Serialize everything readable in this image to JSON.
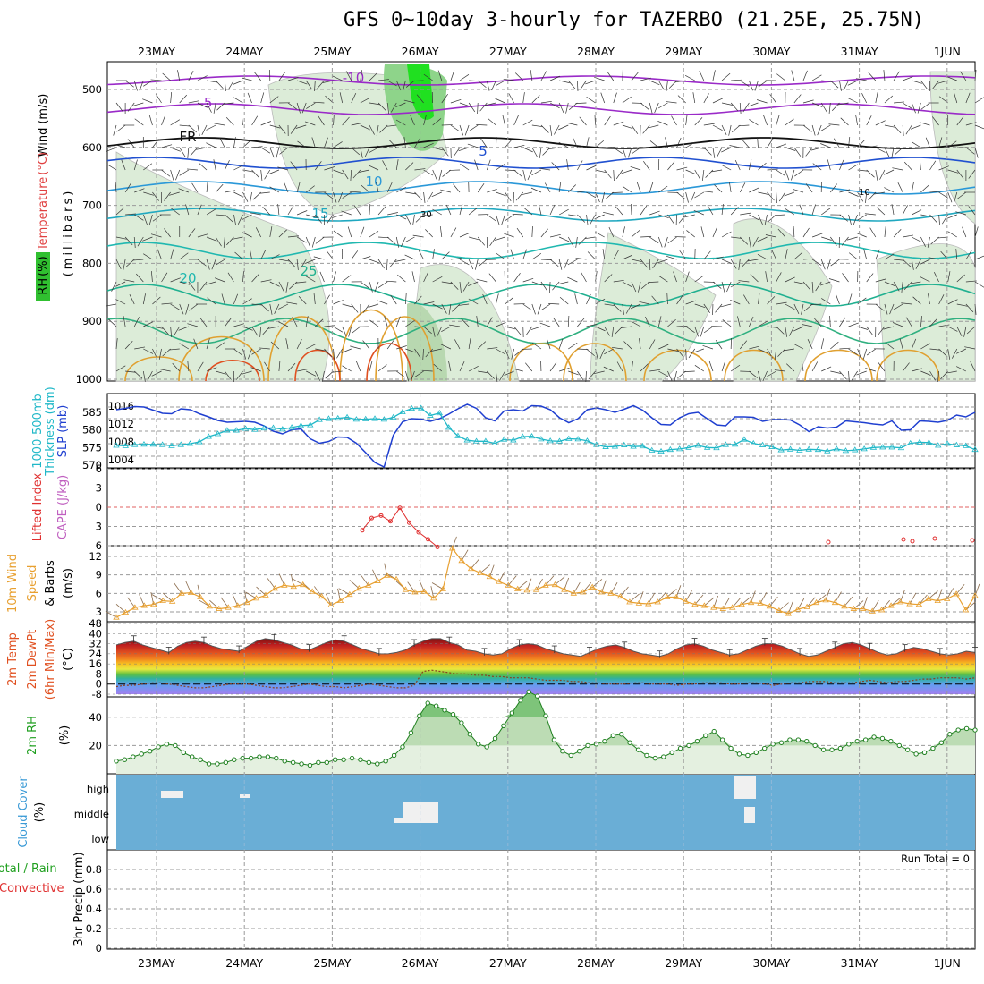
{
  "title": "GFS 0~10day 3-hourly for TAZERBO (21.25E, 25.75N)",
  "colors": {
    "slp": "#1f3fd0",
    "thickness": "#20b8c8",
    "lifted": "#e03030",
    "wind10": "#e8a030",
    "rh2m": "#208020",
    "cloud_bg": "#6aaed6",
    "cloud_patch": "#f0f0f0",
    "precip_total": "#20a020",
    "precip_conv": "#e03030",
    "temp_warm": "#e05020"
  },
  "panels": {
    "profile": {
      "ylabel_parts": [
        "Wind",
        "(m/s)",
        "Temperature",
        "(°C)",
        "RH",
        "(%)",
        "(millibars)"
      ]
    },
    "slp": {
      "ylabel1": "1000-500mb",
      "ylabel2": "Thickness (dm)",
      "ylabel3": "SLP (mb)"
    },
    "lifted": {
      "ylabel1": "Lifted Index",
      "ylabel2": "CAPE (J/kg)"
    },
    "wind10": {
      "ylabel1": "10m Wind",
      "ylabel2": "Speed",
      "ylabel3": "& Barbs",
      "ylabel4": "(m/s)"
    },
    "temp": {
      "ylabel1": "2m Temp",
      "ylabel2": "2m DewPt",
      "ylabel3": "(6hr Min/Max)",
      "ylabel4": "(°C)"
    },
    "rh": {
      "ylabel1": "2m RH",
      "ylabel2": "(%)"
    },
    "cloud": {
      "ylabel1": "Cloud Cover",
      "ylabel2": "(%)",
      "levels": [
        "high",
        "middle",
        "low"
      ]
    },
    "precip": {
      "ylabel1": "Total / Rain",
      "ylabel2": "Convective",
      "ylabel3": "3hr Precip (mm)",
      "run_total": "Run Total = 0"
    }
  },
  "chart_data": [
    {
      "type": "line",
      "panel": "axes",
      "x_dates": [
        "23MAY",
        "24MAY",
        "25MAY",
        "26MAY",
        "27MAY",
        "28MAY",
        "29MAY",
        "30MAY",
        "31MAY",
        "1JUN"
      ]
    },
    {
      "type": "line",
      "panel": "profile",
      "ylabel": "millibars",
      "yticks": [
        500,
        600,
        700,
        800,
        900,
        1000
      ],
      "ylim": [
        1000,
        450
      ],
      "isotherm_labels": [
        "-10",
        "-5",
        "FR",
        "5",
        "10",
        "15",
        "20",
        "25"
      ],
      "rh_contour_labels": [
        "10",
        "30"
      ]
    },
    {
      "type": "line",
      "panel": "slp",
      "yticks_left": [
        585,
        580,
        575,
        570
      ],
      "yticks_right": [
        1016,
        1012,
        1008,
        1004
      ],
      "series": [
        {
          "name": "SLP",
          "axis": "right",
          "values": [
            1015.2,
            1015.5,
            1015.9,
            1015.8,
            1015.1,
            1014.4,
            1014.3,
            1015.4,
            1015.2,
            1014.3,
            1013.6,
            1012.8,
            1012.4,
            1012.5,
            1012.6,
            1012.4,
            1011.6,
            1010.4,
            1009.8,
            1010.7,
            1010.9,
            1008.7,
            1007.7,
            1008.1,
            1009.1,
            1009.0,
            1007.7,
            1005.6,
            1003.4,
            1002.4,
            1009.5,
            1012.5,
            1013.2,
            1013.1,
            1012.6,
            1013.2,
            1014.2,
            1015.4,
            1016.4,
            1015.5,
            1013.4,
            1012.7,
            1014.9,
            1015.2,
            1014.9,
            1016.1,
            1016.0,
            1015.2,
            1013.4,
            1012.3,
            1013.2,
            1015.2,
            1015.6,
            1015.2,
            1014.6,
            1015.3,
            1016.1,
            1015.1,
            1013.4,
            1011.9,
            1011.8,
            1013.4,
            1014.3,
            1014.6,
            1013.2,
            1011.8,
            1011.6,
            1013.6,
            1013.6,
            1013.5,
            1012.6,
            1013.0,
            1013.0,
            1012.9,
            1011.8,
            1010.3,
            1011.4,
            1011.1,
            1011.3,
            1012.7,
            1012.5,
            1012.3,
            1012.0,
            1011.8,
            1012.7,
            1010.6,
            1010.7,
            1012.7,
            1012.6,
            1012.4,
            1012.8,
            1014.0,
            1013.6,
            1014.6
          ]
        },
        {
          "name": "1000-500mb Thickness",
          "axis": "left",
          "values": [
            575.6,
            575.5,
            575.8,
            575.9,
            575.9,
            575.8,
            575.5,
            575.8,
            576.1,
            576.6,
            578.1,
            578.9,
            579.9,
            579.9,
            580.4,
            580.1,
            580.5,
            580.6,
            580.2,
            580.7,
            581.2,
            581.4,
            582.9,
            583.2,
            583.3,
            583.6,
            583.0,
            583.1,
            583.2,
            583.0,
            583.6,
            585.1,
            586.1,
            586.2,
            584.1,
            584.8,
            580.7,
            578.3,
            577.1,
            576.8,
            576.8,
            576.2,
            577.3,
            577.1,
            578.1,
            578.2,
            577.4,
            576.9,
            576.8,
            577.5,
            577.4,
            576.9,
            575.8,
            575.2,
            575.3,
            575.7,
            575.3,
            575.4,
            574.2,
            573.9,
            574.4,
            574.6,
            575.0,
            575.6,
            575.0,
            574.9,
            575.8,
            575.9,
            577.3,
            576.2,
            575.7,
            575.2,
            574.3,
            574.5,
            574.2,
            574.5,
            574.4,
            574.0,
            574.6,
            574.1,
            574.3,
            574.6,
            575.0,
            575.1,
            575.1,
            574.9,
            576.2,
            576.5,
            576.4,
            575.6,
            576.1,
            575.7,
            575.5,
            574.4
          ]
        }
      ]
    },
    {
      "type": "line",
      "panel": "lifted",
      "yticks": [
        -6,
        -3,
        0,
        3,
        6
      ],
      "series": [
        {
          "name": "Lifted Index",
          "values": [
            3.6,
            1.7,
            1.3,
            2.2,
            0.1,
            2.4,
            3.9,
            5.0,
            6.2
          ]
        }
      ]
    },
    {
      "type": "line",
      "panel": "wind10",
      "yticks": [
        3,
        6,
        9,
        12
      ],
      "series": [
        {
          "name": "10m Wind Speed",
          "values": [
            2.1,
            2.9,
            3.7,
            4.0,
            4.2,
            4.8,
            4.7,
            6.0,
            6.1,
            5.4,
            3.9,
            3.5,
            3.7,
            4.0,
            4.5,
            5.2,
            5.7,
            6.8,
            7.3,
            7.1,
            7.4,
            6.3,
            5.5,
            4.1,
            4.8,
            5.8,
            6.8,
            7.3,
            8.0,
            8.9,
            8.3,
            6.6,
            6.2,
            6.3,
            5.2,
            6.7,
            13.3,
            11.3,
            10.0,
            9.3,
            8.7,
            7.9,
            7.3,
            6.7,
            6.5,
            6.6,
            7.3,
            7.4,
            6.6,
            6.0,
            6.2,
            7.0,
            6.2,
            6.0,
            5.5,
            4.6,
            4.4,
            4.3,
            4.6,
            5.4,
            5.4,
            4.7,
            4.2,
            4.0,
            3.7,
            3.5,
            3.7,
            4.2,
            4.5,
            4.4,
            3.9,
            3.2,
            2.7,
            3.4,
            3.8,
            4.5,
            4.9,
            4.5,
            3.9,
            3.5,
            3.5,
            3.1,
            3.3,
            4.0,
            4.6,
            4.3,
            4.2,
            5.1,
            4.8,
            5.1,
            5.9,
            3.3,
            5.6
          ]
        }
      ]
    },
    {
      "type": "area",
      "panel": "temp",
      "yticks": [
        -8,
        0,
        8,
        16,
        24,
        32,
        40,
        48
      ],
      "series": [
        {
          "name": "2m Temp",
          "values": [
            31,
            33,
            34,
            31,
            29,
            27,
            25,
            30,
            33,
            34,
            33,
            30,
            28,
            27,
            26,
            30,
            34,
            36,
            35,
            33,
            31,
            28,
            27,
            30,
            33,
            35,
            34,
            31,
            28,
            26,
            24,
            24,
            25,
            27,
            31,
            34,
            36,
            36,
            33,
            31,
            27,
            26,
            24,
            23,
            24,
            28,
            31,
            32,
            31,
            28,
            26,
            24,
            23,
            22,
            25,
            28,
            30,
            31,
            29,
            26,
            24,
            23,
            22,
            24,
            28,
            31,
            32,
            30,
            27,
            25,
            23,
            24,
            27,
            30,
            32,
            32,
            30,
            27,
            24,
            22,
            23,
            26,
            29,
            32,
            33,
            31,
            28,
            25,
            23,
            24,
            27,
            29,
            28,
            26,
            24,
            23,
            24,
            26,
            25
          ]
        },
        {
          "name": "2m DewPt",
          "values": [
            -2,
            -1,
            -1,
            0,
            1,
            1,
            0,
            -1,
            -2,
            -3,
            -3,
            -2,
            -1,
            0,
            0,
            0,
            -1,
            -2,
            -3,
            -3,
            -2,
            -1,
            0,
            -1,
            -2,
            -2,
            -3,
            -2,
            -1,
            0,
            -1,
            -2,
            -3,
            -3,
            -1,
            10,
            11,
            10,
            9,
            8,
            8,
            7,
            7,
            6,
            6,
            5,
            5,
            5,
            4,
            3,
            3,
            3,
            2,
            2,
            1,
            1,
            0,
            0,
            0,
            1,
            1,
            0,
            0,
            0,
            -1,
            0,
            0,
            1,
            1,
            1,
            0,
            0,
            1,
            1,
            0,
            -1,
            0,
            1,
            1,
            2,
            2,
            2,
            1,
            1,
            1,
            2,
            3,
            2,
            1,
            2,
            2,
            3,
            4,
            4,
            5,
            5,
            5,
            4,
            5
          ]
        }
      ]
    },
    {
      "type": "area",
      "panel": "rh",
      "yticks": [
        20,
        40
      ],
      "series": [
        {
          "name": "2m RH",
          "values": [
            9,
            10,
            12,
            14,
            16,
            19,
            21,
            20,
            15,
            12,
            10,
            7,
            7,
            8,
            10,
            11,
            11,
            12,
            12,
            11,
            9,
            8,
            7,
            6,
            8,
            8,
            10,
            10,
            11,
            10,
            8,
            7,
            9,
            13,
            19,
            29,
            41,
            50,
            48,
            45,
            42,
            36,
            28,
            21,
            19,
            25,
            34,
            43,
            52,
            58,
            55,
            41,
            24,
            16,
            13,
            16,
            20,
            21,
            23,
            27,
            28,
            22,
            17,
            13,
            11,
            12,
            15,
            18,
            20,
            23,
            27,
            30,
            24,
            18,
            14,
            13,
            15,
            18,
            21,
            22,
            24,
            24,
            23,
            20,
            17,
            17,
            18,
            21,
            23,
            24,
            26,
            25,
            23,
            20,
            17,
            14,
            15,
            18,
            22,
            28,
            31,
            32,
            31
          ]
        }
      ]
    },
    {
      "type": "heatmap",
      "panel": "cloud",
      "ylabels": [
        "high",
        "middle",
        "low"
      ]
    },
    {
      "type": "bar",
      "panel": "precip",
      "yticks": [
        0,
        0.2,
        0.4,
        0.6,
        0.8
      ],
      "ylim": [
        0,
        1
      ],
      "values": []
    }
  ]
}
